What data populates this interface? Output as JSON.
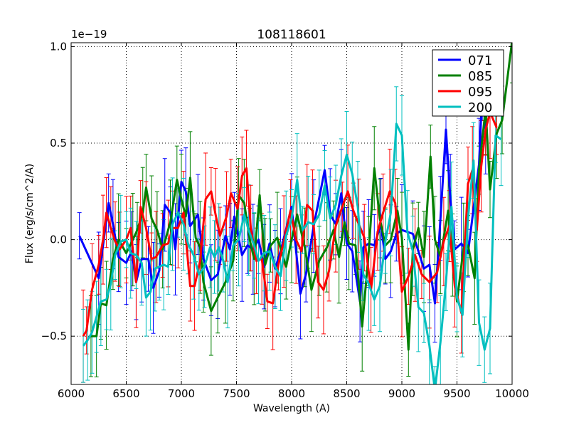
{
  "chart_data": {
    "type": "line",
    "title": "108118601",
    "xlabel": "Wavelength (A)",
    "ylabel": "Flux (erg/s/cm^2/A)",
    "offset_text": "1e−19",
    "xlim": [
      6000,
      10000
    ],
    "ylim": [
      -0.75,
      1.02
    ],
    "grid": true,
    "legend_position": "top-right",
    "x_ticks": [
      6000,
      6500,
      7000,
      7500,
      8000,
      8500,
      9000,
      9500,
      10000
    ],
    "x_tick_labels": [
      "6000",
      "6500",
      "7000",
      "7500",
      "8000",
      "8500",
      "9000",
      "9500",
      "10000"
    ],
    "y_ticks": [
      -0.5,
      0.0,
      0.5,
      1.0
    ],
    "y_tick_labels": [
      "−0.5",
      "0.0",
      "0.5",
      "1.0"
    ],
    "series": [
      {
        "name": "071",
        "color": "#0000ff",
        "points": [
          [
            6075,
            0.02
          ],
          [
            6250,
            -0.2
          ],
          [
            6340,
            0.19
          ],
          [
            6380,
            0.08
          ],
          [
            6430,
            -0.09
          ],
          [
            6500,
            -0.12
          ],
          [
            6550,
            -0.06
          ],
          [
            6590,
            -0.22
          ],
          [
            6640,
            -0.1
          ],
          [
            6700,
            -0.1
          ],
          [
            6745,
            -0.25
          ],
          [
            6800,
            -0.16
          ],
          [
            6850,
            0.18
          ],
          [
            6900,
            0.14
          ],
          [
            6945,
            -0.05
          ],
          [
            7000,
            0.3
          ],
          [
            7040,
            0.25
          ],
          [
            7080,
            0.07
          ],
          [
            7150,
            0.13
          ],
          [
            7200,
            -0.1
          ],
          [
            7270,
            -0.21
          ],
          [
            7330,
            -0.18
          ],
          [
            7400,
            0.02
          ],
          [
            7440,
            -0.05
          ],
          [
            7480,
            0.12
          ],
          [
            7550,
            -0.08
          ],
          [
            7600,
            -0.03
          ],
          [
            7650,
            -0.05
          ],
          [
            7700,
            0.0
          ],
          [
            7750,
            -0.14
          ],
          [
            7800,
            -0.02
          ],
          [
            7850,
            -0.15
          ],
          [
            7900,
            -0.06
          ],
          [
            8000,
            0.17
          ],
          [
            8080,
            -0.28
          ],
          [
            8130,
            -0.18
          ],
          [
            8200,
            0.07
          ],
          [
            8300,
            0.36
          ],
          [
            8350,
            0.13
          ],
          [
            8400,
            0.08
          ],
          [
            8450,
            0.24
          ],
          [
            8500,
            -0.02
          ],
          [
            8550,
            -0.06
          ],
          [
            8620,
            -0.32
          ],
          [
            8650,
            -0.04
          ],
          [
            8700,
            -0.02
          ],
          [
            8750,
            -0.03
          ],
          [
            8810,
            0.08
          ],
          [
            8850,
            -0.1
          ],
          [
            8900,
            -0.06
          ],
          [
            8950,
            0.03
          ],
          [
            9000,
            0.05
          ],
          [
            9100,
            0.03
          ],
          [
            9200,
            -0.15
          ],
          [
            9250,
            -0.13
          ],
          [
            9300,
            -0.33
          ],
          [
            9350,
            0.11
          ],
          [
            9400,
            0.57
          ],
          [
            9440,
            0.21
          ],
          [
            9480,
            -0.05
          ],
          [
            9540,
            -0.02
          ],
          [
            9600,
            -0.07
          ],
          [
            9700,
            0.39
          ],
          [
            9730,
            0.77
          ],
          [
            9760,
            0.57
          ]
        ]
      },
      {
        "name": "085",
        "color": "#008000",
        "points": [
          [
            6180,
            -0.5
          ],
          [
            6230,
            -0.5
          ],
          [
            6270,
            -0.33
          ],
          [
            6320,
            -0.34
          ],
          [
            6380,
            -0.1
          ],
          [
            6430,
            0.0
          ],
          [
            6500,
            -0.07
          ],
          [
            6560,
            0.0
          ],
          [
            6600,
            0.05
          ],
          [
            6650,
            0.14
          ],
          [
            6680,
            0.27
          ],
          [
            6730,
            0.11
          ],
          [
            6780,
            0.05
          ],
          [
            6830,
            -0.05
          ],
          [
            6900,
            0.09
          ],
          [
            6960,
            0.31
          ],
          [
            7000,
            0.21
          ],
          [
            7040,
            0.12
          ],
          [
            7080,
            0.32
          ],
          [
            7130,
            0.01
          ],
          [
            7170,
            -0.04
          ],
          [
            7200,
            -0.22
          ],
          [
            7270,
            -0.37
          ],
          [
            7330,
            -0.3
          ],
          [
            7400,
            -0.22
          ],
          [
            7470,
            -0.11
          ],
          [
            7520,
            0.23
          ],
          [
            7570,
            0.19
          ],
          [
            7620,
            0.0
          ],
          [
            7660,
            -0.1
          ],
          [
            7710,
            0.23
          ],
          [
            7760,
            -0.13
          ],
          [
            7810,
            -0.03
          ],
          [
            7870,
            0.01
          ],
          [
            7950,
            -0.14
          ],
          [
            8000,
            0.0
          ],
          [
            8050,
            0.13
          ],
          [
            8120,
            -0.04
          ],
          [
            8180,
            -0.26
          ],
          [
            8250,
            -0.11
          ],
          [
            8320,
            -0.04
          ],
          [
            8380,
            0.05
          ],
          [
            8430,
            -0.09
          ],
          [
            8480,
            0.09
          ],
          [
            8520,
            -0.02
          ],
          [
            8580,
            -0.03
          ],
          [
            8640,
            -0.45
          ],
          [
            8700,
            -0.06
          ],
          [
            8750,
            0.37
          ],
          [
            8800,
            0.11
          ],
          [
            8850,
            -0.03
          ],
          [
            8900,
            0.0
          ],
          [
            8960,
            0.15
          ],
          [
            9000,
            0.01
          ],
          [
            9060,
            -0.57
          ],
          [
            9100,
            -0.05
          ],
          [
            9150,
            0.06
          ],
          [
            9200,
            -0.09
          ],
          [
            9260,
            0.43
          ],
          [
            9300,
            0.0
          ],
          [
            9350,
            -0.09
          ],
          [
            9420,
            0.15
          ],
          [
            9460,
            -0.08
          ],
          [
            9500,
            -0.32
          ],
          [
            9560,
            -0.04
          ],
          [
            9600,
            -0.03
          ],
          [
            9660,
            -0.2
          ],
          [
            9700,
            0.36
          ],
          [
            9760,
            0.68
          ],
          [
            9800,
            0.26
          ],
          [
            9860,
            0.55
          ],
          [
            9910,
            0.62
          ],
          [
            10000,
            1.03
          ]
        ]
      },
      {
        "name": "095",
        "color": "#ff0000",
        "points": [
          [
            6110,
            -0.5
          ],
          [
            6140,
            -0.47
          ],
          [
            6190,
            -0.26
          ],
          [
            6250,
            -0.13
          ],
          [
            6290,
            0.0
          ],
          [
            6320,
            0.14
          ],
          [
            6360,
            0.06
          ],
          [
            6400,
            -0.01
          ],
          [
            6440,
            -0.05
          ],
          [
            6500,
            0.0
          ],
          [
            6540,
            0.06
          ],
          [
            6590,
            -0.22
          ],
          [
            6630,
            0.17
          ],
          [
            6680,
            0.06
          ],
          [
            6730,
            -0.1
          ],
          [
            6770,
            -0.09
          ],
          [
            6830,
            -0.03
          ],
          [
            6880,
            -0.02
          ],
          [
            6920,
            0.06
          ],
          [
            6970,
            0.06
          ],
          [
            7020,
            0.14
          ],
          [
            7080,
            -0.24
          ],
          [
            7120,
            -0.24
          ],
          [
            7170,
            -0.11
          ],
          [
            7220,
            0.21
          ],
          [
            7270,
            0.25
          ],
          [
            7310,
            0.13
          ],
          [
            7350,
            0.02
          ],
          [
            7410,
            0.12
          ],
          [
            7450,
            0.24
          ],
          [
            7510,
            0.16
          ],
          [
            7550,
            0.33
          ],
          [
            7590,
            0.37
          ],
          [
            7630,
            0.06
          ],
          [
            7680,
            -0.11
          ],
          [
            7730,
            -0.1
          ],
          [
            7780,
            -0.32
          ],
          [
            7830,
            -0.33
          ],
          [
            7880,
            -0.13
          ],
          [
            7930,
            -0.01
          ],
          [
            7990,
            0.15
          ],
          [
            8040,
            0.0
          ],
          [
            8090,
            -0.06
          ],
          [
            8140,
            0.18
          ],
          [
            8190,
            0.15
          ],
          [
            8240,
            -0.22
          ],
          [
            8290,
            -0.26
          ],
          [
            8340,
            -0.16
          ],
          [
            8400,
            0.07
          ],
          [
            8460,
            0.17
          ],
          [
            8510,
            0.25
          ],
          [
            8560,
            0.15
          ],
          [
            8610,
            0.08
          ],
          [
            8660,
            0.01
          ],
          [
            8720,
            -0.26
          ],
          [
            8780,
            0.04
          ],
          [
            8830,
            0.14
          ],
          [
            8890,
            0.25
          ],
          [
            8940,
            0.19
          ],
          [
            9000,
            -0.27
          ],
          [
            9060,
            -0.19
          ],
          [
            9120,
            -0.08
          ],
          [
            9180,
            -0.18
          ],
          [
            9250,
            -0.22
          ],
          [
            9320,
            -0.17
          ],
          [
            9380,
            -0.01
          ],
          [
            9430,
            0.07
          ],
          [
            9480,
            -0.24
          ],
          [
            9540,
            -0.38
          ],
          [
            9600,
            0.29
          ],
          [
            9640,
            0.36
          ],
          [
            9680,
            0.05
          ],
          [
            9720,
            0.38
          ],
          [
            9760,
            0.57
          ],
          [
            9800,
            0.66
          ],
          [
            9860,
            0.58
          ]
        ]
      },
      {
        "name": "200",
        "color": "#00bfbf",
        "points": [
          [
            6110,
            -0.55
          ],
          [
            6150,
            -0.52
          ],
          [
            6190,
            -0.48
          ],
          [
            6230,
            -0.4
          ],
          [
            6270,
            -0.32
          ],
          [
            6320,
            -0.31
          ],
          [
            6360,
            -0.23
          ],
          [
            6400,
            -0.08
          ],
          [
            6450,
            -0.01
          ],
          [
            6500,
            0.0
          ],
          [
            6540,
            -0.07
          ],
          [
            6590,
            -0.08
          ],
          [
            6640,
            -0.12
          ],
          [
            6680,
            -0.3
          ],
          [
            6720,
            -0.27
          ],
          [
            6760,
            -0.15
          ],
          [
            6800,
            -0.14
          ],
          [
            6840,
            -0.13
          ],
          [
            6880,
            -0.14
          ],
          [
            6920,
            0.08
          ],
          [
            6970,
            0.14
          ],
          [
            7020,
            0.08
          ],
          [
            7060,
            -0.02
          ],
          [
            7110,
            -0.08
          ],
          [
            7160,
            -0.18
          ],
          [
            7210,
            -0.14
          ],
          [
            7260,
            -0.04
          ],
          [
            7300,
            -0.09
          ],
          [
            7340,
            -0.04
          ],
          [
            7380,
            -0.11
          ],
          [
            7420,
            -0.22
          ],
          [
            7470,
            -0.03
          ],
          [
            7520,
            0.0
          ],
          [
            7570,
            0.13
          ],
          [
            7610,
            0.05
          ],
          [
            7660,
            -0.03
          ],
          [
            7700,
            -0.11
          ],
          [
            7750,
            -0.07
          ],
          [
            7800,
            -0.06
          ],
          [
            7850,
            -0.14
          ],
          [
            7900,
            -0.19
          ],
          [
            7950,
            0.02
          ],
          [
            8000,
            0.11
          ],
          [
            8050,
            0.31
          ],
          [
            8100,
            0.05
          ],
          [
            8150,
            0.09
          ],
          [
            8200,
            0.08
          ],
          [
            8250,
            0.13
          ],
          [
            8300,
            0.28
          ],
          [
            8350,
            0.11
          ],
          [
            8400,
            0.18
          ],
          [
            8450,
            0.33
          ],
          [
            8500,
            0.44
          ],
          [
            8550,
            0.34
          ],
          [
            8600,
            0.17
          ],
          [
            8650,
            -0.18
          ],
          [
            8700,
            -0.23
          ],
          [
            8750,
            -0.31
          ],
          [
            8800,
            -0.24
          ],
          [
            8850,
            -0.01
          ],
          [
            8900,
            0.14
          ],
          [
            8950,
            0.6
          ],
          [
            9000,
            0.54
          ],
          [
            9050,
            0.04
          ],
          [
            9100,
            -0.06
          ],
          [
            9150,
            -0.35
          ],
          [
            9200,
            -0.38
          ],
          [
            9250,
            -0.55
          ],
          [
            9300,
            -0.78
          ],
          [
            9350,
            -0.53
          ],
          [
            9400,
            -0.22
          ],
          [
            9450,
            0.17
          ],
          [
            9500,
            -0.3
          ],
          [
            9550,
            -0.39
          ],
          [
            9600,
            0.11
          ],
          [
            9650,
            0.41
          ],
          [
            9700,
            -0.43
          ],
          [
            9750,
            -0.57
          ],
          [
            9800,
            -0.46
          ],
          [
            9850,
            0.54
          ],
          [
            9900,
            0.52
          ]
        ]
      }
    ]
  }
}
